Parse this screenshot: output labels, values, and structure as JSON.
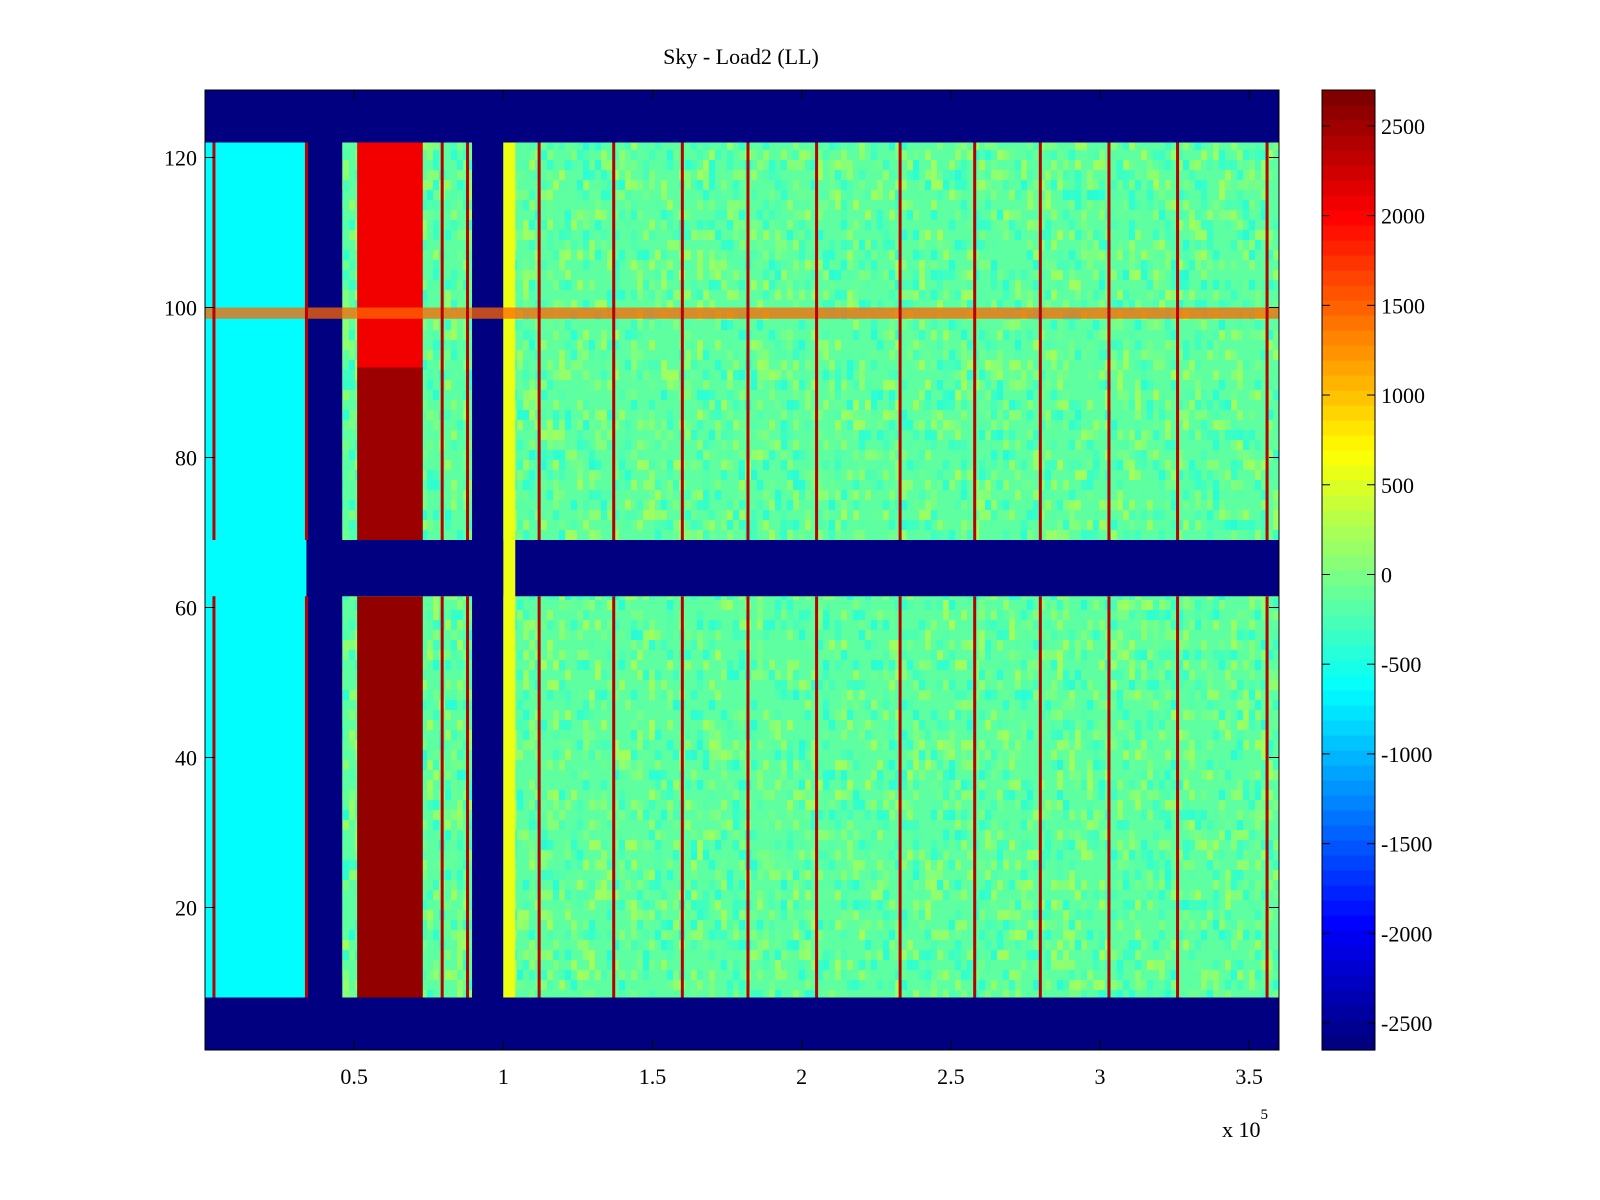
{
  "chart_data": {
    "type": "heatmap",
    "title": "Sky - Load2 (LL)",
    "xlabel": "",
    "ylabel": "",
    "x_exponent_label": {
      "base": "x 10",
      "exp": "5"
    },
    "xlim": [
      0,
      360000
    ],
    "ylim": [
      1,
      129
    ],
    "xticks": [
      {
        "value": 50000,
        "label": "0.5"
      },
      {
        "value": 100000,
        "label": "1"
      },
      {
        "value": 150000,
        "label": "1.5"
      },
      {
        "value": 200000,
        "label": "2"
      },
      {
        "value": 250000,
        "label": "2.5"
      },
      {
        "value": 300000,
        "label": "3"
      },
      {
        "value": 350000,
        "label": "3.5"
      }
    ],
    "yticks": [
      {
        "value": 20,
        "label": "20"
      },
      {
        "value": 40,
        "label": "40"
      },
      {
        "value": 60,
        "label": "60"
      },
      {
        "value": 80,
        "label": "80"
      },
      {
        "value": 100,
        "label": "100"
      },
      {
        "value": 120,
        "label": "120"
      }
    ],
    "colorbar": {
      "colormap": "jet",
      "range": [
        -2650,
        2700
      ],
      "ticks": [
        {
          "value": 2500,
          "label": "2500"
        },
        {
          "value": 2000,
          "label": "2000"
        },
        {
          "value": 1500,
          "label": "1500"
        },
        {
          "value": 1000,
          "label": "1000"
        },
        {
          "value": 500,
          "label": "500"
        },
        {
          "value": 0,
          "label": "0"
        },
        {
          "value": -500,
          "label": "-500"
        },
        {
          "value": -1000,
          "label": "-1000"
        },
        {
          "value": -1500,
          "label": "-1500"
        },
        {
          "value": -2000,
          "label": "-2000"
        },
        {
          "value": -2500,
          "label": "-2500"
        }
      ]
    },
    "background_value": -150,
    "regions": [
      {
        "label": "masked rows (bottom)",
        "x": [
          0,
          360000
        ],
        "y": [
          1,
          8
        ],
        "value": -2650
      },
      {
        "label": "masked rows (middle)",
        "x": [
          0,
          360000
        ],
        "y": [
          61.5,
          69
        ],
        "value": -2650
      },
      {
        "label": "masked rows (top)",
        "x": [
          0,
          360000
        ],
        "y": [
          122,
          129
        ],
        "value": -2650
      },
      {
        "label": "masked column 1",
        "x": [
          34000,
          46000
        ],
        "y": [
          8,
          122
        ],
        "value": -2650
      },
      {
        "label": "masked column 2",
        "x": [
          89500,
          100000
        ],
        "y": [
          8,
          122
        ],
        "value": -2650
      },
      {
        "label": "hot block lower",
        "x": [
          51000,
          73000
        ],
        "y": [
          8,
          61.5
        ],
        "value": 2600
      },
      {
        "label": "hot block upper-low",
        "x": [
          51000,
          73000
        ],
        "y": [
          69,
          92
        ],
        "value": 2550
      },
      {
        "label": "hot block upper-high",
        "x": [
          51000,
          73000
        ],
        "y": [
          92,
          122
        ],
        "value": 2100
      },
      {
        "label": "cool left band",
        "x": [
          0,
          34000
        ],
        "y": [
          8,
          122
        ],
        "value": -650
      },
      {
        "label": "warm edge after column 2",
        "x": [
          100000,
          104000
        ],
        "y": [
          8,
          122
        ],
        "value": 600
      },
      {
        "label": "row 99 interference",
        "x": [
          0,
          360000
        ],
        "y": [
          98.5,
          100
        ],
        "value": 1500
      }
    ],
    "stripes_x": [
      3000,
      34000,
      79500,
      88000,
      112000,
      137000,
      160000,
      182000,
      205000,
      233000,
      258000,
      280000,
      303000,
      326000,
      356000
    ]
  }
}
